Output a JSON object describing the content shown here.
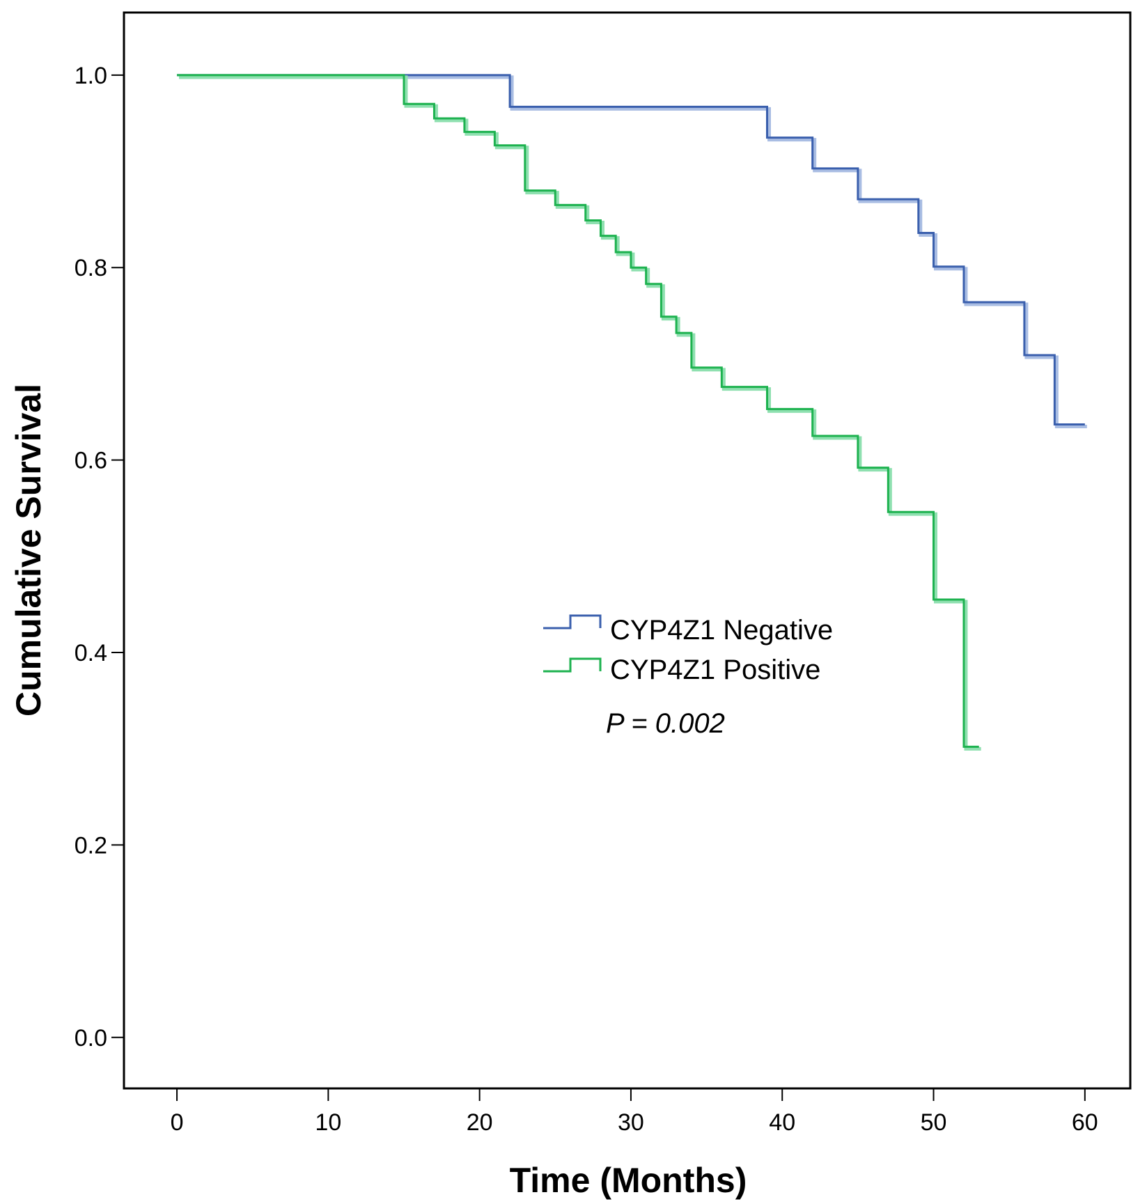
{
  "chart_data": {
    "type": "line",
    "subtype": "kaplan-meier step",
    "title": "",
    "xlabel": "Time (Months)",
    "ylabel": "Cumulative Survival",
    "xlim": [
      -3.5,
      63
    ],
    "ylim": [
      -0.053,
      1.065
    ],
    "xticks": [
      0,
      10,
      20,
      30,
      40,
      50,
      60
    ],
    "xtick_labels": [
      "0",
      "10",
      "20",
      "30",
      "40",
      "50",
      "60"
    ],
    "yticks": [
      0.0,
      0.2,
      0.4,
      0.6,
      0.8,
      1.0
    ],
    "ytick_labels": [
      "0.0",
      "0.2",
      "0.4",
      "0.6",
      "0.8",
      "1.0"
    ],
    "grid": false,
    "legend_position": "center-right",
    "annotation": "P = 0.002",
    "series": [
      {
        "name": "CYP4Z1 Negative",
        "color": "#3a5fad",
        "shade": "#a9bde3",
        "x": [
          0,
          22,
          39,
          42,
          45,
          49,
          50,
          52,
          56,
          58,
          60
        ],
        "y": [
          1.0,
          0.967,
          0.935,
          0.903,
          0.871,
          0.836,
          0.801,
          0.764,
          0.709,
          0.637,
          0.637
        ]
      },
      {
        "name": "CYP4Z1 Positive",
        "color": "#1db24f",
        "shade": "#8fe0b0",
        "x": [
          0,
          15,
          17,
          19,
          21,
          23,
          25,
          27,
          28,
          29,
          30,
          31,
          32,
          33,
          34,
          36,
          39,
          42,
          45,
          47,
          50,
          52,
          53
        ],
        "y": [
          1.0,
          0.97,
          0.955,
          0.941,
          0.927,
          0.88,
          0.865,
          0.849,
          0.833,
          0.816,
          0.8,
          0.783,
          0.749,
          0.732,
          0.696,
          0.676,
          0.653,
          0.625,
          0.592,
          0.546,
          0.455,
          0.302,
          0.302
        ]
      }
    ]
  }
}
